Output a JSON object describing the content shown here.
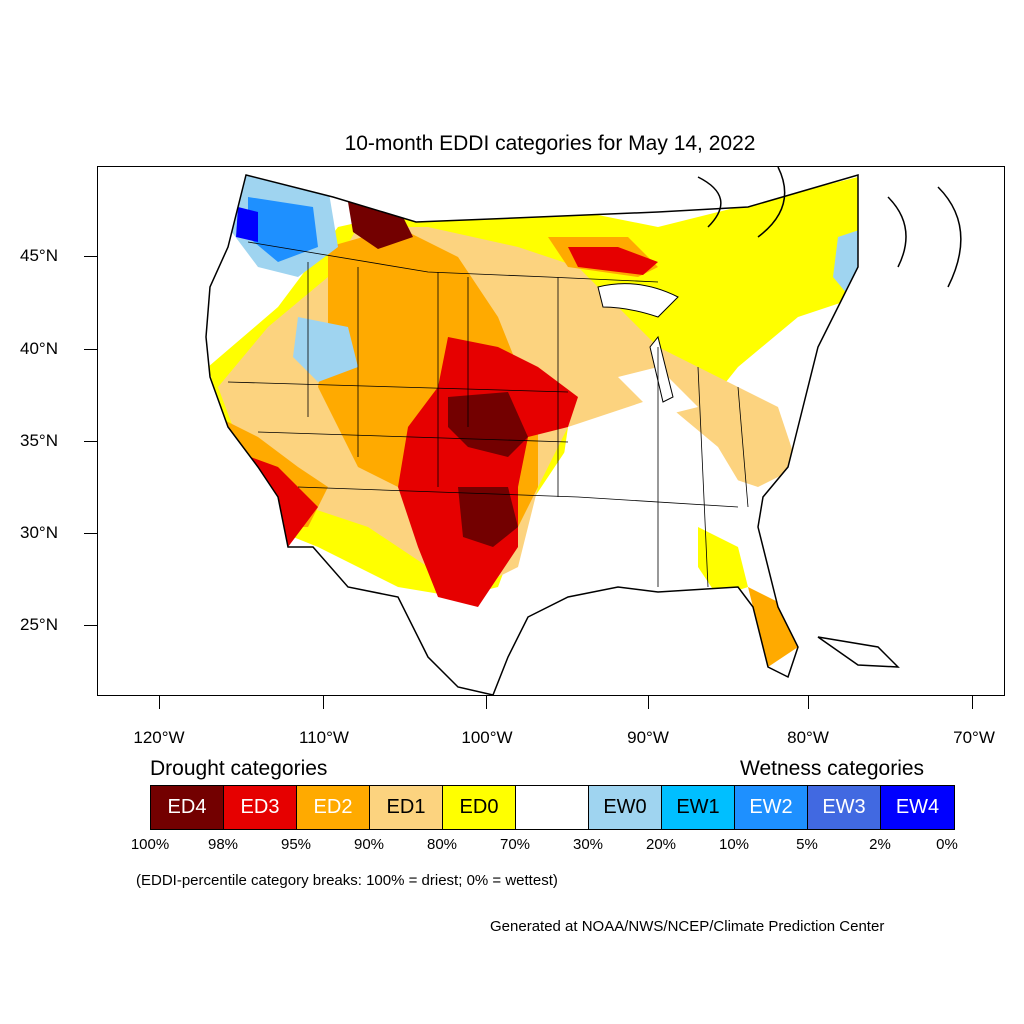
{
  "title": "10-month EDDI categories for May 14, 2022",
  "map": {
    "lat_labels": [
      "45°N",
      "40°N",
      "35°N",
      "30°N",
      "25°N"
    ],
    "lon_labels": [
      "120°W",
      "110°W",
      "100°W",
      "90°W",
      "80°W",
      "70°W"
    ]
  },
  "legend": {
    "drought_heading": "Drought categories",
    "wetness_heading": "Wetness categories",
    "categories": [
      {
        "label": "ED4",
        "color": "#730000",
        "text_color": "#ffffff"
      },
      {
        "label": "ED3",
        "color": "#e60000",
        "text_color": "#ffffff"
      },
      {
        "label": "ED2",
        "color": "#ffaa00",
        "text_color": "#ffffff"
      },
      {
        "label": "ED1",
        "color": "#fcd37f",
        "text_color": "#000000"
      },
      {
        "label": "ED0",
        "color": "#ffff00",
        "text_color": "#000000"
      },
      {
        "label": "",
        "color": "#ffffff",
        "text_color": "#000000"
      },
      {
        "label": "EW0",
        "color": "#9fd4f0",
        "text_color": "#000000"
      },
      {
        "label": "EW1",
        "color": "#00bfff",
        "text_color": "#000000"
      },
      {
        "label": "EW2",
        "color": "#1e90ff",
        "text_color": "#ffffff"
      },
      {
        "label": "EW3",
        "color": "#4169e1",
        "text_color": "#ffffff"
      },
      {
        "label": "EW4",
        "color": "#0000ff",
        "text_color": "#ffffff"
      }
    ],
    "breaks": [
      "100%",
      "98%",
      "95%",
      "90%",
      "80%",
      "70%",
      "30%",
      "20%",
      "10%",
      "5%",
      "2%",
      "0%"
    ]
  },
  "note": "(EDDI-percentile category breaks: 100% = driest; 0% = wettest)",
  "credit": "Generated at NOAA/NWS/NCEP/Climate Prediction Center"
}
